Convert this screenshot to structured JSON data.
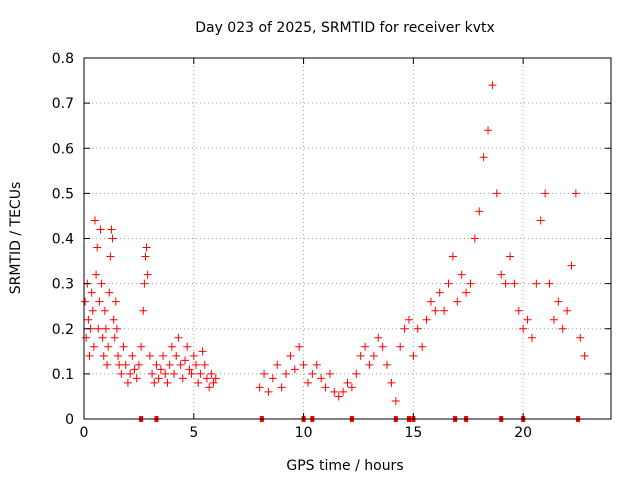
{
  "chart_data": {
    "type": "scatter",
    "title": "Day 023 of 2025, SRMTID for receiver kvtx",
    "xlabel": "GPS time / hours",
    "ylabel": "SRMTID / TECUs",
    "xlim": [
      0,
      24
    ],
    "ylim": [
      0,
      0.8
    ],
    "xticks": [
      0,
      5,
      10,
      15,
      20
    ],
    "yticks": [
      0,
      0.1,
      0.2,
      0.3,
      0.4,
      0.5,
      0.6,
      0.7,
      0.8
    ],
    "xtick_labels": [
      "0",
      "5",
      "10",
      "15",
      "20"
    ],
    "ytick_labels": [
      "0",
      "0.1",
      "0.2",
      "0.3",
      "0.4",
      "0.5",
      "0.6",
      "0.7",
      "0.8"
    ],
    "marker": "plus",
    "marker_color": "#ff0000",
    "grid": true,
    "series": [
      {
        "name": "SRMTID",
        "points": [
          [
            0.05,
            0.26
          ],
          [
            0.1,
            0.18
          ],
          [
            0.15,
            0.3
          ],
          [
            0.2,
            0.22
          ],
          [
            0.25,
            0.14
          ],
          [
            0.3,
            0.2
          ],
          [
            0.35,
            0.28
          ],
          [
            0.4,
            0.24
          ],
          [
            0.45,
            0.16
          ],
          [
            0.5,
            0.44
          ],
          [
            0.55,
            0.32
          ],
          [
            0.6,
            0.38
          ],
          [
            0.65,
            0.2
          ],
          [
            0.7,
            0.26
          ],
          [
            0.75,
            0.42
          ],
          [
            0.8,
            0.3
          ],
          [
            0.85,
            0.18
          ],
          [
            0.9,
            0.14
          ],
          [
            0.95,
            0.24
          ],
          [
            1.0,
            0.2
          ],
          [
            1.05,
            0.12
          ],
          [
            1.1,
            0.16
          ],
          [
            1.15,
            0.28
          ],
          [
            1.2,
            0.36
          ],
          [
            1.25,
            0.42
          ],
          [
            1.3,
            0.4
          ],
          [
            1.35,
            0.22
          ],
          [
            1.4,
            0.18
          ],
          [
            1.45,
            0.26
          ],
          [
            1.5,
            0.2
          ],
          [
            1.55,
            0.14
          ],
          [
            1.6,
            0.12
          ],
          [
            1.7,
            0.1
          ],
          [
            1.8,
            0.16
          ],
          [
            1.9,
            0.12
          ],
          [
            2.0,
            0.08
          ],
          [
            2.1,
            0.1
          ],
          [
            2.2,
            0.14
          ],
          [
            2.3,
            0.11
          ],
          [
            2.4,
            0.09
          ],
          [
            2.5,
            0.12
          ],
          [
            2.6,
            0.16
          ],
          [
            2.7,
            0.24
          ],
          [
            2.75,
            0.3
          ],
          [
            2.8,
            0.36
          ],
          [
            2.85,
            0.38
          ],
          [
            2.9,
            0.32
          ],
          [
            3.0,
            0.14
          ],
          [
            3.1,
            0.1
          ],
          [
            3.2,
            0.08
          ],
          [
            3.3,
            0.12
          ],
          [
            3.4,
            0.09
          ],
          [
            3.5,
            0.11
          ],
          [
            3.6,
            0.14
          ],
          [
            3.7,
            0.1
          ],
          [
            3.8,
            0.08
          ],
          [
            3.9,
            0.12
          ],
          [
            4.0,
            0.16
          ],
          [
            4.1,
            0.1
          ],
          [
            4.2,
            0.14
          ],
          [
            4.3,
            0.18
          ],
          [
            4.4,
            0.12
          ],
          [
            4.5,
            0.09
          ],
          [
            4.6,
            0.13
          ],
          [
            4.7,
            0.16
          ],
          [
            4.8,
            0.11
          ],
          [
            4.9,
            0.1
          ],
          [
            5.0,
            0.14
          ],
          [
            5.1,
            0.12
          ],
          [
            5.2,
            0.08
          ],
          [
            5.3,
            0.1
          ],
          [
            5.4,
            0.15
          ],
          [
            5.5,
            0.12
          ],
          [
            5.6,
            0.09
          ],
          [
            5.7,
            0.07
          ],
          [
            5.8,
            0.1
          ],
          [
            5.9,
            0.08
          ],
          [
            6.0,
            0.09
          ],
          [
            8.0,
            0.07
          ],
          [
            8.2,
            0.1
          ],
          [
            8.4,
            0.06
          ],
          [
            8.6,
            0.09
          ],
          [
            8.8,
            0.12
          ],
          [
            9.0,
            0.07
          ],
          [
            9.2,
            0.1
          ],
          [
            9.4,
            0.14
          ],
          [
            9.6,
            0.11
          ],
          [
            9.8,
            0.16
          ],
          [
            10.0,
            0.12
          ],
          [
            10.2,
            0.08
          ],
          [
            10.4,
            0.1
          ],
          [
            10.6,
            0.12
          ],
          [
            10.8,
            0.09
          ],
          [
            11.0,
            0.07
          ],
          [
            11.2,
            0.1
          ],
          [
            11.4,
            0.06
          ],
          [
            11.6,
            0.05
          ],
          [
            11.8,
            0.06
          ],
          [
            12.0,
            0.08
          ],
          [
            12.2,
            0.07
          ],
          [
            12.4,
            0.1
          ],
          [
            12.6,
            0.14
          ],
          [
            12.8,
            0.16
          ],
          [
            13.0,
            0.12
          ],
          [
            13.2,
            0.14
          ],
          [
            13.4,
            0.18
          ],
          [
            13.6,
            0.16
          ],
          [
            13.8,
            0.12
          ],
          [
            14.0,
            0.08
          ],
          [
            14.2,
            0.04
          ],
          [
            14.4,
            0.16
          ],
          [
            14.6,
            0.2
          ],
          [
            14.8,
            0.22
          ],
          [
            15.0,
            0.14
          ],
          [
            15.2,
            0.2
          ],
          [
            15.4,
            0.16
          ],
          [
            15.6,
            0.22
          ],
          [
            15.8,
            0.26
          ],
          [
            16.0,
            0.24
          ],
          [
            16.2,
            0.28
          ],
          [
            16.4,
            0.24
          ],
          [
            16.6,
            0.3
          ],
          [
            16.8,
            0.36
          ],
          [
            17.0,
            0.26
          ],
          [
            17.2,
            0.32
          ],
          [
            17.4,
            0.28
          ],
          [
            17.6,
            0.3
          ],
          [
            17.8,
            0.4
          ],
          [
            18.0,
            0.46
          ],
          [
            18.2,
            0.58
          ],
          [
            18.4,
            0.64
          ],
          [
            18.6,
            0.74
          ],
          [
            18.8,
            0.5
          ],
          [
            19.0,
            0.32
          ],
          [
            19.2,
            0.3
          ],
          [
            19.4,
            0.36
          ],
          [
            19.6,
            0.3
          ],
          [
            19.8,
            0.24
          ],
          [
            20.0,
            0.2
          ],
          [
            20.2,
            0.22
          ],
          [
            20.4,
            0.18
          ],
          [
            20.6,
            0.3
          ],
          [
            20.8,
            0.44
          ],
          [
            21.0,
            0.5
          ],
          [
            21.2,
            0.3
          ],
          [
            21.4,
            0.22
          ],
          [
            21.6,
            0.26
          ],
          [
            21.8,
            0.2
          ],
          [
            22.0,
            0.24
          ],
          [
            22.2,
            0.34
          ],
          [
            22.4,
            0.5
          ],
          [
            22.6,
            0.18
          ],
          [
            22.8,
            0.14
          ]
        ],
        "zero_markers": [
          2.6,
          3.3,
          8.1,
          10.0,
          10.4,
          12.2,
          14.2,
          14.8,
          15.0,
          16.9,
          17.4,
          19.0,
          20.0,
          22.5
        ]
      }
    ]
  }
}
